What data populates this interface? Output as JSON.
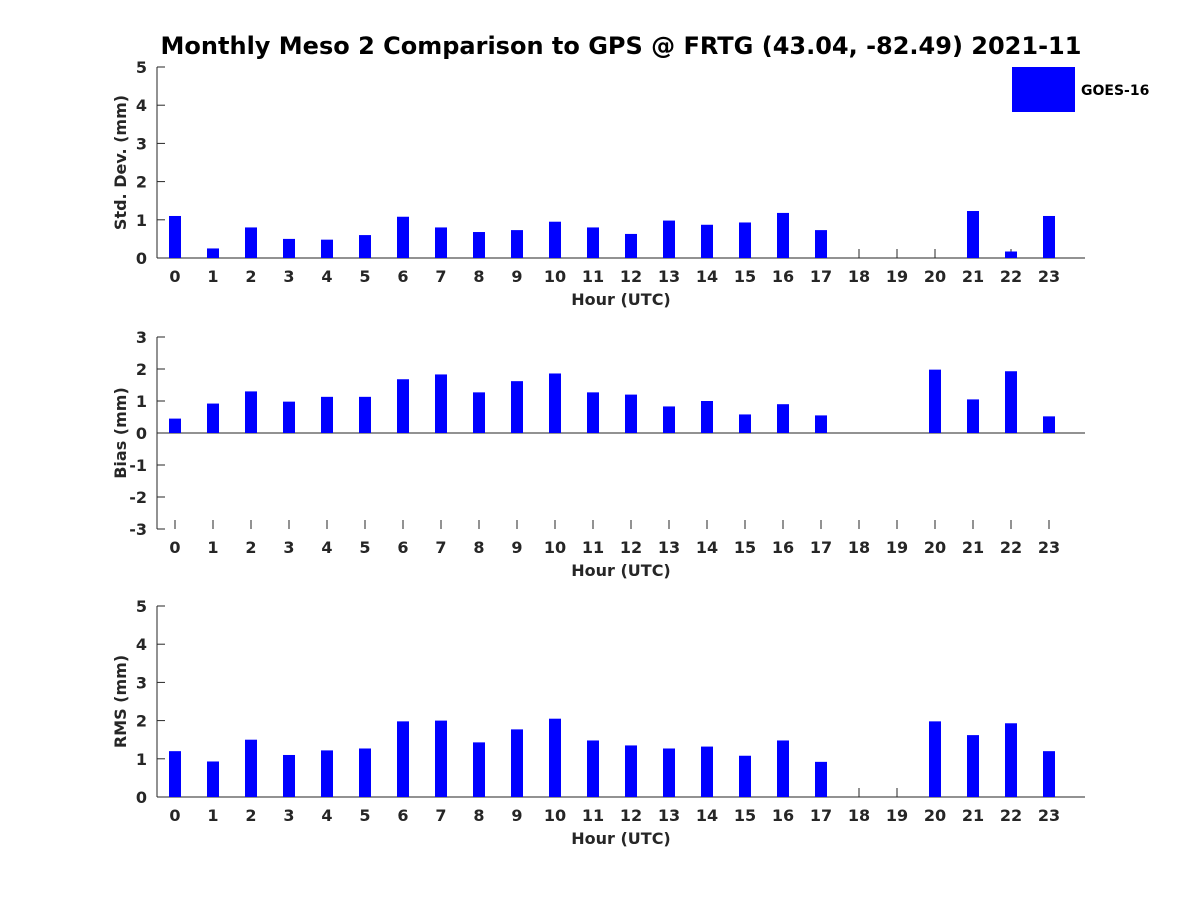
{
  "title": "Monthly Meso 2 Comparison to GPS @ FRTG (43.04, -82.49) 2021-11",
  "legend": {
    "label": "GOES-16",
    "color": "#0000ff",
    "placement": "top-right"
  },
  "chart_data": [
    {
      "type": "bar",
      "xlabel": "Hour (UTC)",
      "ylabel": "Std. Dev. (mm)",
      "ylim": [
        0,
        5
      ],
      "yticks": [
        "0",
        "1",
        "2",
        "3",
        "4",
        "5"
      ],
      "categories": [
        "0",
        "1",
        "2",
        "3",
        "4",
        "5",
        "6",
        "7",
        "8",
        "9",
        "10",
        "11",
        "12",
        "13",
        "14",
        "15",
        "16",
        "17",
        "18",
        "19",
        "20",
        "21",
        "22",
        "23"
      ],
      "series": [
        {
          "name": "GOES-16",
          "color": "#0000ff",
          "values": [
            1.1,
            0.25,
            0.8,
            0.5,
            0.48,
            0.6,
            1.08,
            0.8,
            0.68,
            0.73,
            0.95,
            0.8,
            0.63,
            0.98,
            0.87,
            0.93,
            1.18,
            0.73,
            null,
            null,
            null,
            1.23,
            0.17,
            1.1
          ]
        }
      ]
    },
    {
      "type": "bar",
      "xlabel": "Hour (UTC)",
      "ylabel": "Bias (mm)",
      "ylim": [
        -3,
        3
      ],
      "yticks": [
        "-3",
        "-2",
        "-1",
        "0",
        "1",
        "2",
        "3"
      ],
      "categories": [
        "0",
        "1",
        "2",
        "3",
        "4",
        "5",
        "6",
        "7",
        "8",
        "9",
        "10",
        "11",
        "12",
        "13",
        "14",
        "15",
        "16",
        "17",
        "18",
        "19",
        "20",
        "21",
        "22",
        "23"
      ],
      "series": [
        {
          "name": "GOES-16",
          "color": "#0000ff",
          "values": [
            0.45,
            0.92,
            1.3,
            0.98,
            1.13,
            1.13,
            1.68,
            1.83,
            1.27,
            1.62,
            1.86,
            1.27,
            1.2,
            0.83,
            1.0,
            0.58,
            0.9,
            0.55,
            null,
            null,
            1.98,
            1.05,
            1.93,
            0.52
          ]
        }
      ]
    },
    {
      "type": "bar",
      "xlabel": "Hour (UTC)",
      "ylabel": "RMS (mm)",
      "ylim": [
        0,
        5
      ],
      "yticks": [
        "0",
        "1",
        "2",
        "3",
        "4",
        "5"
      ],
      "categories": [
        "0",
        "1",
        "2",
        "3",
        "4",
        "5",
        "6",
        "7",
        "8",
        "9",
        "10",
        "11",
        "12",
        "13",
        "14",
        "15",
        "16",
        "17",
        "18",
        "19",
        "20",
        "21",
        "22",
        "23"
      ],
      "series": [
        {
          "name": "GOES-16",
          "color": "#0000ff",
          "values": [
            1.2,
            0.93,
            1.5,
            1.1,
            1.22,
            1.27,
            1.98,
            2.0,
            1.43,
            1.77,
            2.05,
            1.48,
            1.35,
            1.27,
            1.32,
            1.08,
            1.48,
            0.92,
            null,
            null,
            1.98,
            1.62,
            1.93,
            1.2
          ]
        }
      ]
    }
  ]
}
